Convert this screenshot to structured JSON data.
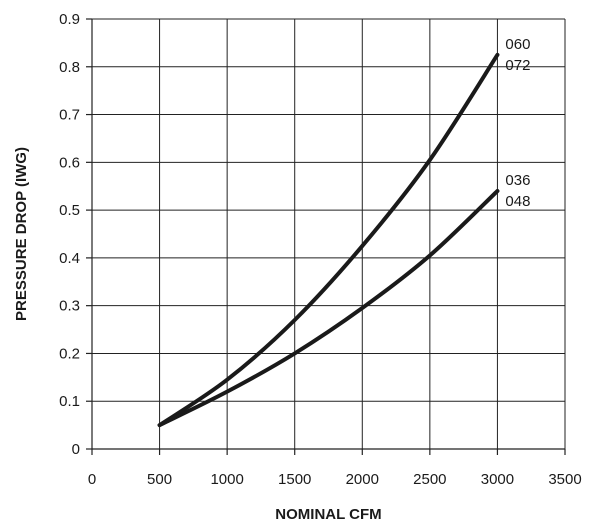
{
  "chart_data": {
    "type": "line",
    "xlabel": "NOMINAL CFM",
    "ylabel": "PRESSURE DROP (IWG)",
    "xlim": [
      0,
      3500
    ],
    "ylim": [
      0,
      0.9
    ],
    "xticks": [
      0,
      500,
      1000,
      1500,
      2000,
      2500,
      3000,
      3500
    ],
    "yticks": [
      0,
      0.1,
      0.2,
      0.3,
      0.4,
      0.5,
      0.6,
      0.7,
      0.8,
      0.9
    ],
    "xtick_labels": [
      "0",
      "500",
      "1000",
      "1500",
      "2000",
      "2500",
      "3000",
      "3500"
    ],
    "ytick_labels": [
      "0",
      "0.1",
      "0.2",
      "0.3",
      "0.4",
      "0.5",
      "0.6",
      "0.7",
      "0.8",
      "0.9"
    ],
    "grid": true,
    "series": [
      {
        "name": "060 / 072",
        "label_lines": [
          "060",
          "072"
        ],
        "x": [
          500,
          1000,
          1500,
          2000,
          2500,
          3000
        ],
        "y": [
          0.05,
          0.145,
          0.27,
          0.425,
          0.605,
          0.825
        ]
      },
      {
        "name": "036 / 048",
        "label_lines": [
          "036",
          "048"
        ],
        "x": [
          500,
          1000,
          1500,
          2000,
          2500,
          3000
        ],
        "y": [
          0.05,
          0.12,
          0.2,
          0.295,
          0.405,
          0.54
        ]
      }
    ]
  }
}
